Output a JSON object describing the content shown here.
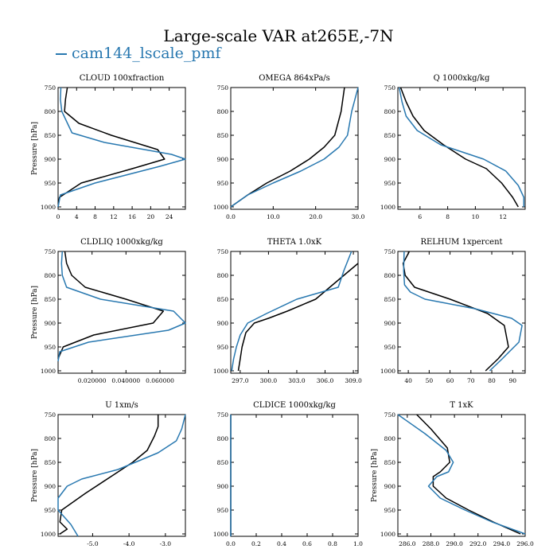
{
  "figure": {
    "title": "Large-scale VAR at265E,-7N",
    "legend": {
      "label": "cam144_lscale_pmf",
      "color": "#2878b0"
    },
    "ref_color": "#000000"
  },
  "chart_data": [
    {
      "type": "line",
      "title": "CLOUD  100xfraction",
      "ylabel": "Pressure [hPa]",
      "xlim": [
        0,
        27.5
      ],
      "ylim": [
        1005,
        750
      ],
      "y_inverted": true,
      "xticks": [
        0,
        4,
        8,
        12,
        16,
        20,
        24
      ],
      "xtick_labels": [
        "0",
        "4",
        "8",
        "12",
        "16",
        "20",
        "24"
      ],
      "yticks": [
        750,
        800,
        850,
        900,
        950,
        1000
      ],
      "ytick_labels": [
        "750",
        "800",
        "850",
        "900",
        "950",
        "1000"
      ],
      "series": [
        {
          "role": "reference",
          "color": "#000000",
          "x": [
            2.0,
            1.6,
            1.4,
            4.5,
            11.5,
            21.5,
            23.0,
            16.0,
            5.0,
            0.3,
            0.0
          ],
          "y": [
            750,
            775,
            800,
            825,
            850,
            880,
            900,
            920,
            950,
            980,
            1000
          ]
        },
        {
          "name": "cam144_lscale_pmf",
          "color": "#2878b0",
          "x": [
            0.6,
            0.5,
            0.8,
            3.0,
            10.0,
            24.5,
            27.5,
            22.0,
            8.0,
            0.5,
            0.0
          ],
          "y": [
            750,
            775,
            800,
            845,
            865,
            890,
            900,
            915,
            950,
            975,
            1000
          ]
        }
      ]
    },
    {
      "type": "line",
      "title": "OMEGA  864xPa/s",
      "ylabel": "",
      "xlim": [
        0,
        30
      ],
      "ylim": [
        1005,
        750
      ],
      "y_inverted": true,
      "xticks": [
        0,
        10,
        20,
        30
      ],
      "xtick_labels": [
        "0.0",
        "10.0",
        "20.0",
        "30.0"
      ],
      "yticks": [
        750,
        800,
        850,
        900,
        950,
        1000
      ],
      "ytick_labels": [
        "750",
        "800",
        "850",
        "900",
        "950",
        "1000"
      ],
      "series": [
        {
          "role": "reference",
          "color": "#000000",
          "x": [
            26.8,
            26.0,
            24.5,
            22.0,
            18.5,
            14.0,
            8.5,
            4.0,
            0.0
          ],
          "y": [
            750,
            800,
            850,
            875,
            900,
            925,
            950,
            975,
            1000
          ]
        },
        {
          "name": "cam144_lscale_pmf",
          "color": "#2878b0",
          "x": [
            30.0,
            28.5,
            27.5,
            25.5,
            22.0,
            16.5,
            10.0,
            4.0,
            0.0
          ],
          "y": [
            750,
            800,
            850,
            875,
            900,
            925,
            950,
            975,
            1000
          ]
        }
      ]
    },
    {
      "type": "line",
      "title": "Q  1000xkg/kg",
      "ylabel": "",
      "xlim": [
        4.4,
        13.6
      ],
      "ylim": [
        1005,
        750
      ],
      "y_inverted": true,
      "xticks": [
        6,
        8,
        10,
        12
      ],
      "xtick_labels": [
        "6",
        "8",
        "10",
        "12"
      ],
      "yticks": [
        750,
        800,
        850,
        900,
        950,
        1000
      ],
      "ytick_labels": [
        "750",
        "800",
        "850",
        "900",
        "950",
        "1000"
      ],
      "series": [
        {
          "role": "reference",
          "color": "#000000",
          "x": [
            4.6,
            5.0,
            5.5,
            6.3,
            7.7,
            9.3,
            10.8,
            11.9,
            12.7,
            13.1
          ],
          "y": [
            750,
            780,
            810,
            840,
            870,
            900,
            920,
            950,
            980,
            1000
          ]
        },
        {
          "name": "cam144_lscale_pmf",
          "color": "#2878b0",
          "x": [
            4.5,
            4.7,
            5.0,
            5.8,
            7.5,
            10.6,
            12.2,
            13.1,
            13.5,
            13.5
          ],
          "y": [
            750,
            780,
            810,
            840,
            870,
            900,
            925,
            955,
            980,
            1000
          ]
        }
      ]
    },
    {
      "type": "line",
      "title": "CLDLIQ  1000xkg/kg",
      "ylabel": "Pressure [hPa]",
      "xlim": [
        0,
        0.075
      ],
      "ylim": [
        1005,
        750
      ],
      "y_inverted": true,
      "xticks": [
        0.02,
        0.04,
        0.06
      ],
      "xtick_labels": [
        "0.020000",
        "0.040000",
        "0.060000"
      ],
      "yticks": [
        750,
        800,
        850,
        900,
        950,
        1000
      ],
      "ytick_labels": [
        "750",
        "800",
        "850",
        "900",
        "950",
        "1000"
      ],
      "series": [
        {
          "role": "reference",
          "color": "#000000",
          "x": [
            0.004,
            0.005,
            0.008,
            0.016,
            0.04,
            0.062,
            0.056,
            0.021,
            0.003,
            0.0
          ],
          "y": [
            750,
            775,
            800,
            825,
            850,
            875,
            900,
            925,
            950,
            975
          ]
        },
        {
          "name": "cam144_lscale_pmf",
          "color": "#2878b0",
          "x": [
            0.0025,
            0.002,
            0.0025,
            0.005,
            0.025,
            0.068,
            0.075,
            0.065,
            0.018,
            0.001,
            0.0
          ],
          "y": [
            750,
            775,
            800,
            825,
            850,
            875,
            900,
            915,
            940,
            960,
            980
          ]
        }
      ]
    },
    {
      "type": "line",
      "title": "THETA  1.0xK",
      "ylabel": "",
      "xlim": [
        296.0,
        309.5
      ],
      "ylim": [
        1005,
        750
      ],
      "y_inverted": true,
      "xticks": [
        297,
        300,
        303,
        306,
        309
      ],
      "xtick_labels": [
        "297.0",
        "300.0",
        "303.0",
        "306.0",
        "309.0"
      ],
      "yticks": [
        750,
        800,
        850,
        900,
        950,
        1000
      ],
      "ytick_labels": [
        "750",
        "800",
        "850",
        "900",
        "950",
        "1000"
      ],
      "series": [
        {
          "role": "reference",
          "color": "#000000",
          "x": [
            309.5,
            308.0,
            305.0,
            302.0,
            300.0,
            298.5,
            297.6,
            297.2,
            297.0,
            296.8
          ],
          "y": [
            775,
            800,
            850,
            875,
            890,
            900,
            920,
            950,
            975,
            1000
          ]
        },
        {
          "name": "cam144_lscale_pmf",
          "color": "#2878b0",
          "x": [
            308.8,
            308.0,
            307.4,
            303.0,
            299.8,
            297.8,
            297.0,
            296.6,
            296.3,
            296.1
          ],
          "y": [
            750,
            790,
            825,
            850,
            880,
            900,
            925,
            950,
            975,
            1000
          ]
        }
      ]
    },
    {
      "type": "line",
      "title": "RELHUM  1xpercent",
      "ylabel": "",
      "xlim": [
        35,
        96
      ],
      "ylim": [
        1005,
        750
      ],
      "y_inverted": true,
      "xticks": [
        40,
        50,
        60,
        70,
        80,
        90
      ],
      "xtick_labels": [
        "40",
        "50",
        "60",
        "70",
        "80",
        "90"
      ],
      "yticks": [
        750,
        800,
        850,
        900,
        950,
        1000
      ],
      "ytick_labels": [
        "750",
        "800",
        "850",
        "900",
        "950",
        "1000"
      ],
      "series": [
        {
          "role": "reference",
          "color": "#000000",
          "x": [
            40.5,
            37.5,
            38.5,
            43.0,
            60.0,
            78.0,
            86.0,
            88.0,
            83.0,
            77.0
          ],
          "y": [
            750,
            775,
            800,
            825,
            850,
            880,
            905,
            950,
            975,
            1000
          ]
        },
        {
          "name": "cam144_lscale_pmf",
          "color": "#2878b0",
          "x": [
            38.0,
            37.8,
            38.2,
            41.0,
            48.0,
            72.0,
            89.5,
            94.5,
            93.0,
            85.0,
            79.0
          ],
          "y": [
            750,
            790,
            820,
            835,
            850,
            870,
            890,
            905,
            940,
            975,
            1000
          ]
        }
      ]
    },
    {
      "type": "line",
      "title": "U  1xm/s",
      "ylabel": "Pressure [hPa]",
      "xlim": [
        -5.95,
        -2.45
      ],
      "ylim": [
        1005,
        750
      ],
      "y_inverted": true,
      "xticks": [
        -5,
        -4,
        -3
      ],
      "xtick_labels": [
        "-5.0",
        "-4.0",
        "-3.0"
      ],
      "yticks": [
        750,
        800,
        850,
        900,
        950,
        1000
      ],
      "ytick_labels": [
        "750",
        "800",
        "850",
        "900",
        "950",
        "1000"
      ],
      "series": [
        {
          "role": "reference",
          "color": "#000000",
          "x": [
            -3.2,
            -3.2,
            -3.3,
            -3.5,
            -3.9,
            -4.4,
            -5.2,
            -5.85,
            -5.9,
            -5.7,
            -5.9
          ],
          "y": [
            750,
            775,
            795,
            825,
            850,
            875,
            915,
            950,
            975,
            990,
            1000
          ]
        },
        {
          "name": "cam144_lscale_pmf",
          "color": "#2878b0",
          "x": [
            -2.45,
            -2.55,
            -2.7,
            -3.2,
            -4.3,
            -5.3,
            -5.7,
            -5.95,
            -5.95,
            -5.6,
            -5.4
          ],
          "y": [
            750,
            780,
            805,
            830,
            865,
            885,
            900,
            925,
            950,
            980,
            1005
          ]
        }
      ]
    },
    {
      "type": "line",
      "title": "CLDICE  1000xkg/kg",
      "ylabel": "",
      "xlim": [
        0,
        1
      ],
      "ylim": [
        1005,
        750
      ],
      "y_inverted": true,
      "xticks": [
        0,
        0.2,
        0.4,
        0.6,
        0.8,
        1.0
      ],
      "xtick_labels": [
        "0.0",
        "0.2",
        "0.4",
        "0.6",
        "0.8",
        "1.0"
      ],
      "yticks": [
        750,
        800,
        850,
        900,
        950,
        1000
      ],
      "ytick_labels": [
        "750",
        "800",
        "850",
        "900",
        "950",
        "1000"
      ],
      "series": [
        {
          "role": "reference",
          "color": "#000000",
          "x": [
            0,
            0
          ],
          "y": [
            750,
            1005
          ]
        },
        {
          "name": "cam144_lscale_pmf",
          "color": "#2878b0",
          "x": [
            0,
            0
          ],
          "y": [
            750,
            1005
          ]
        }
      ]
    },
    {
      "type": "line",
      "title": "T  1xK",
      "ylabel": "Pressure [hPa]",
      "xlim": [
        285.2,
        296.0
      ],
      "ylim": [
        1005,
        750
      ],
      "y_inverted": true,
      "xticks": [
        286,
        288,
        290,
        292,
        294,
        296
      ],
      "xtick_labels": [
        "286.0",
        "288.0",
        "290.0",
        "292.0",
        "294.0",
        "296.0"
      ],
      "yticks": [
        750,
        800,
        850,
        900,
        950,
        1000
      ],
      "ytick_labels": [
        "750",
        "800",
        "850",
        "900",
        "950",
        "1000"
      ],
      "series": [
        {
          "role": "reference",
          "color": "#000000",
          "x": [
            286.8,
            288.0,
            289.4,
            289.6,
            288.8,
            288.2,
            288.2,
            289.3,
            291.2,
            293.3,
            295.6
          ],
          "y": [
            750,
            780,
            820,
            850,
            870,
            880,
            900,
            925,
            950,
            975,
            1000
          ]
        },
        {
          "name": "cam144_lscale_pmf",
          "color": "#2878b0",
          "x": [
            285.2,
            287.5,
            289.3,
            289.9,
            289.5,
            288.5,
            287.8,
            288.8,
            290.9,
            293.2,
            296.0
          ],
          "y": [
            750,
            790,
            825,
            850,
            870,
            880,
            900,
            925,
            950,
            975,
            1000
          ]
        }
      ]
    }
  ]
}
